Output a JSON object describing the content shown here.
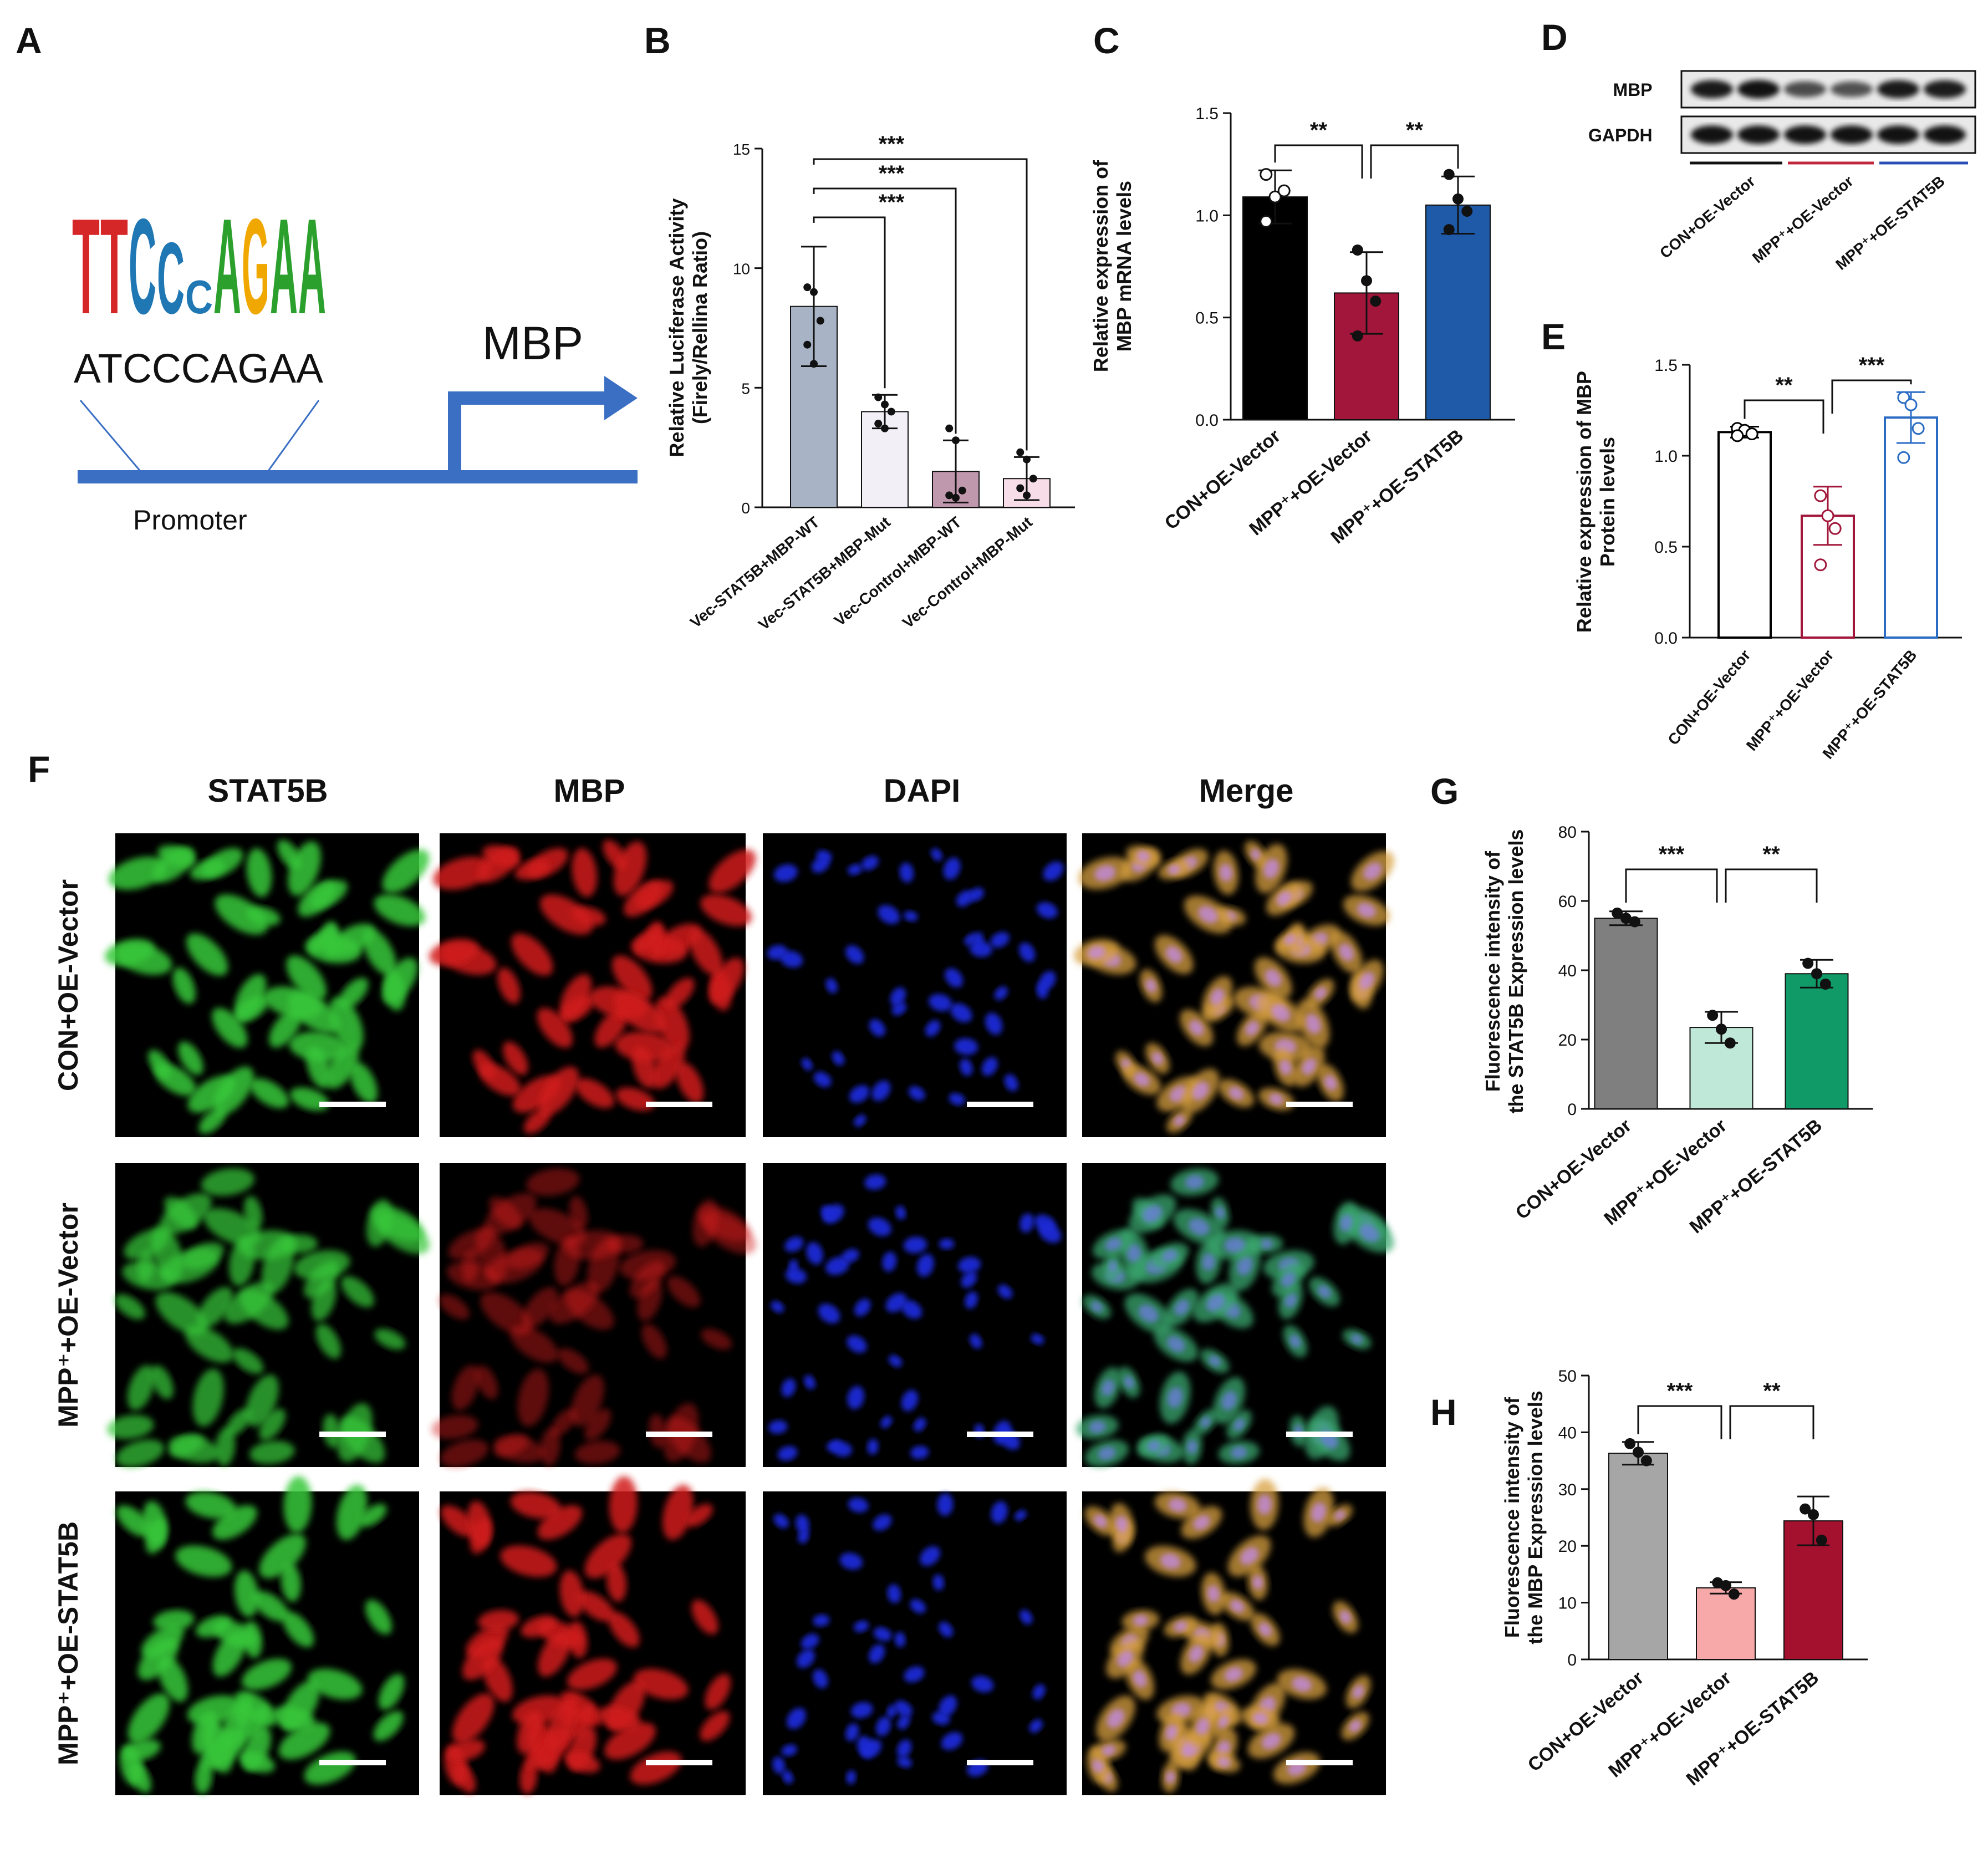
{
  "panel_labels": [
    "A",
    "B",
    "C",
    "D",
    "E",
    "F",
    "G",
    "H"
  ],
  "panel_a": {
    "motif_letters": [
      "T",
      "T",
      "C",
      "C",
      "C",
      "A",
      "G",
      "A",
      "A"
    ],
    "motif_colors": [
      "#d62728",
      "#d62728",
      "#1f77b4",
      "#1f77b4",
      "#1f77b4",
      "#2ca02c",
      "#f0a800",
      "#2ca02c",
      "#2ca02c"
    ],
    "sequence": "ATCCCAGAA",
    "gene": "MBP",
    "promoter_label": "Promoter",
    "diagram_color": "#3a6fc4"
  },
  "panel_d": {
    "rows": [
      "MBP",
      "GAPDH"
    ],
    "groups": [
      "CON+OE-Vector",
      "MPP⁺+OE-Vector",
      "MPP⁺+OE-STAT5B"
    ],
    "group_line_colors": [
      "#111111",
      "#c0273d",
      "#2a50b8"
    ]
  },
  "panel_f": {
    "columns": [
      "STAT5B",
      "MBP",
      "DAPI",
      "Merge"
    ],
    "rows": [
      "CON+OE-Vector",
      "MPP⁺+OE-Vector",
      "MPP⁺+OE-STAT5B"
    ],
    "channel_colors": [
      "#39c83a",
      "#d21e1e",
      "#1a2bd6",
      "#c89a4a"
    ]
  },
  "chart_data": [
    {
      "panel": "B",
      "type": "bar",
      "categories": [
        "Vec-STAT5B+MBP-WT",
        "Vec-STAT5B+MBP-Mut",
        "Vec-Control+MBP-WT",
        "Vec-Control+MBP-Mut"
      ],
      "values": [
        8.4,
        4.0,
        1.5,
        1.2
      ],
      "errors": [
        2.5,
        0.7,
        1.3,
        0.9
      ],
      "points": [
        [
          9.2,
          9.0,
          7.8,
          6.8,
          6.0
        ],
        [
          4.6,
          4.3,
          4.0,
          3.5,
          3.3
        ],
        [
          3.3,
          2.8,
          0.7,
          0.5,
          0.4
        ],
        [
          2.3,
          2.0,
          1.2,
          0.8,
          0.5
        ]
      ],
      "colors": [
        "#a8b4c6",
        "#f3eff6",
        "#bf98ad",
        "#f6dde8"
      ],
      "ylabel": "Relative Luciferase Activity\n(Firely/Rellina Ratio)",
      "ylim": [
        0,
        15
      ],
      "yticks": [
        0,
        5,
        10,
        15
      ],
      "significance": [
        {
          "from": 0,
          "to": 1,
          "label": "***"
        },
        {
          "from": 0,
          "to": 2,
          "label": "***"
        },
        {
          "from": 0,
          "to": 3,
          "label": "***"
        }
      ]
    },
    {
      "panel": "C",
      "type": "bar",
      "categories": [
        "CON+OE-Vector",
        "MPP⁺+OE-Vector",
        "MPP⁺+OE-STAT5B"
      ],
      "values": [
        1.09,
        0.62,
        1.05
      ],
      "errors": [
        0.13,
        0.2,
        0.14
      ],
      "points": [
        [
          1.2,
          1.09,
          1.12,
          0.97
        ],
        [
          0.83,
          0.68,
          0.58,
          0.41
        ],
        [
          1.2,
          1.08,
          1.02,
          0.93
        ]
      ],
      "colors": [
        "#000000",
        "#a1163a",
        "#1e5aa8"
      ],
      "ylabel": "Relative expression of\nMBP mRNA levels",
      "ylim": [
        0,
        1.5
      ],
      "yticks": [
        0.0,
        0.5,
        1.0,
        1.5
      ],
      "significance": [
        {
          "from": 0,
          "to": 1,
          "label": "**"
        },
        {
          "from": 1,
          "to": 2,
          "label": "**"
        }
      ]
    },
    {
      "panel": "E",
      "type": "bar",
      "categories": [
        "CON+OE-Vector",
        "MPP⁺+OE-Vector",
        "MPP⁺+OE-STAT5B"
      ],
      "values": [
        1.13,
        0.67,
        1.21
      ],
      "errors": [
        0.03,
        0.16,
        0.14
      ],
      "points": [
        [
          1.15,
          1.14,
          1.12,
          1.11
        ],
        [
          0.78,
          0.67,
          0.6,
          0.4
        ],
        [
          1.32,
          1.28,
          1.15,
          0.99
        ]
      ],
      "colors": [
        "#ffffff",
        "#ffffff",
        "#ffffff"
      ],
      "edge_colors": [
        "#000000",
        "#a1163a",
        "#2a6cc4"
      ],
      "ylabel": "Relative expression of MBP\nProtein levels",
      "ylim": [
        0,
        1.5
      ],
      "yticks": [
        0.0,
        0.5,
        1.0,
        1.5
      ],
      "significance": [
        {
          "from": 0,
          "to": 1,
          "label": "**"
        },
        {
          "from": 1,
          "to": 2,
          "label": "***"
        }
      ]
    },
    {
      "panel": "G",
      "type": "bar",
      "categories": [
        "CON+OE-Vector",
        "MPP⁺+OE-Vector",
        "MPP⁺+OE-STAT5B"
      ],
      "values": [
        55,
        23.5,
        39
      ],
      "errors": [
        2,
        4.5,
        4
      ],
      "points": [
        [
          56.5,
          55,
          54
        ],
        [
          27,
          23,
          19
        ],
        [
          42,
          39,
          36
        ]
      ],
      "colors": [
        "#7f7f7f",
        "#bfe8d8",
        "#0f9a67"
      ],
      "ylabel": "Fluorescence intensity of\nthe STAT5B Expression levels",
      "ylim": [
        0,
        80
      ],
      "yticks": [
        0,
        20,
        40,
        60,
        80
      ],
      "significance": [
        {
          "from": 0,
          "to": 1,
          "label": "***"
        },
        {
          "from": 1,
          "to": 2,
          "label": "**"
        }
      ]
    },
    {
      "panel": "H",
      "type": "bar",
      "categories": [
        "CON+OE-Vector",
        "MPP⁺+OE-Vector",
        "MPP⁺+OE-STAT5B"
      ],
      "values": [
        36.3,
        12.6,
        24.4
      ],
      "errors": [
        2,
        1,
        4.3
      ],
      "points": [
        [
          38,
          36.5,
          35
        ],
        [
          13.5,
          13,
          11.5
        ],
        [
          26.5,
          25.5,
          21
        ]
      ],
      "colors": [
        "#a6a6a6",
        "#f7a9aa",
        "#a3112f"
      ],
      "ylabel": "Fluorescence intensity of\nthe MBP Expression levels",
      "ylim": [
        0,
        50
      ],
      "yticks": [
        0,
        10,
        20,
        30,
        40,
        50
      ],
      "significance": [
        {
          "from": 0,
          "to": 1,
          "label": "***"
        },
        {
          "from": 1,
          "to": 2,
          "label": "**"
        }
      ]
    }
  ]
}
